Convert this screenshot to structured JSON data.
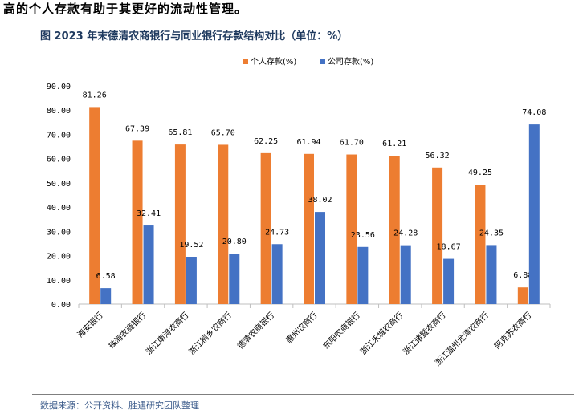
{
  "heading": "高的个人存款有助于其更好的流动性管理。",
  "figure_title": "图    2023 年末德清农商银行与同业银行存款结构对比（单位：%）",
  "source": "数据来源：公开资料、胜遇研究团队整理",
  "colors": {
    "personal": "#ED7D31",
    "corporate": "#4472C4",
    "axis": "#bfbfbf",
    "text": "#000000"
  },
  "chart_data": {
    "type": "bar",
    "title": "2023 年末德清农商银行与同业银行存款结构对比（单位：%）",
    "xlabel": "",
    "ylabel": "",
    "ylim": [
      0,
      90
    ],
    "yticks": [
      "0.00",
      "10.00",
      "20.00",
      "30.00",
      "40.00",
      "50.00",
      "60.00",
      "70.00",
      "80.00",
      "90.00"
    ],
    "legend_position": "top-center",
    "categories": [
      "海安银行",
      "珠海农商银行",
      "浙江南浔农商行",
      "浙江桐乡农商行",
      "德清农商银行",
      "惠州农商行",
      "东阳农商银行",
      "浙江禾城农商行",
      "浙江诸暨农商行",
      "浙江温州龙湾农商行",
      "阿克苏农商行"
    ],
    "series": [
      {
        "name": "个人存款(%)",
        "values": [
          81.26,
          67.39,
          65.81,
          65.7,
          62.25,
          61.94,
          61.7,
          61.21,
          56.32,
          49.25,
          6.88
        ]
      },
      {
        "name": "公司存款(%)",
        "values": [
          6.58,
          32.41,
          19.52,
          20.8,
          24.73,
          38.02,
          23.56,
          24.28,
          18.67,
          24.35,
          74.08
        ]
      }
    ]
  }
}
